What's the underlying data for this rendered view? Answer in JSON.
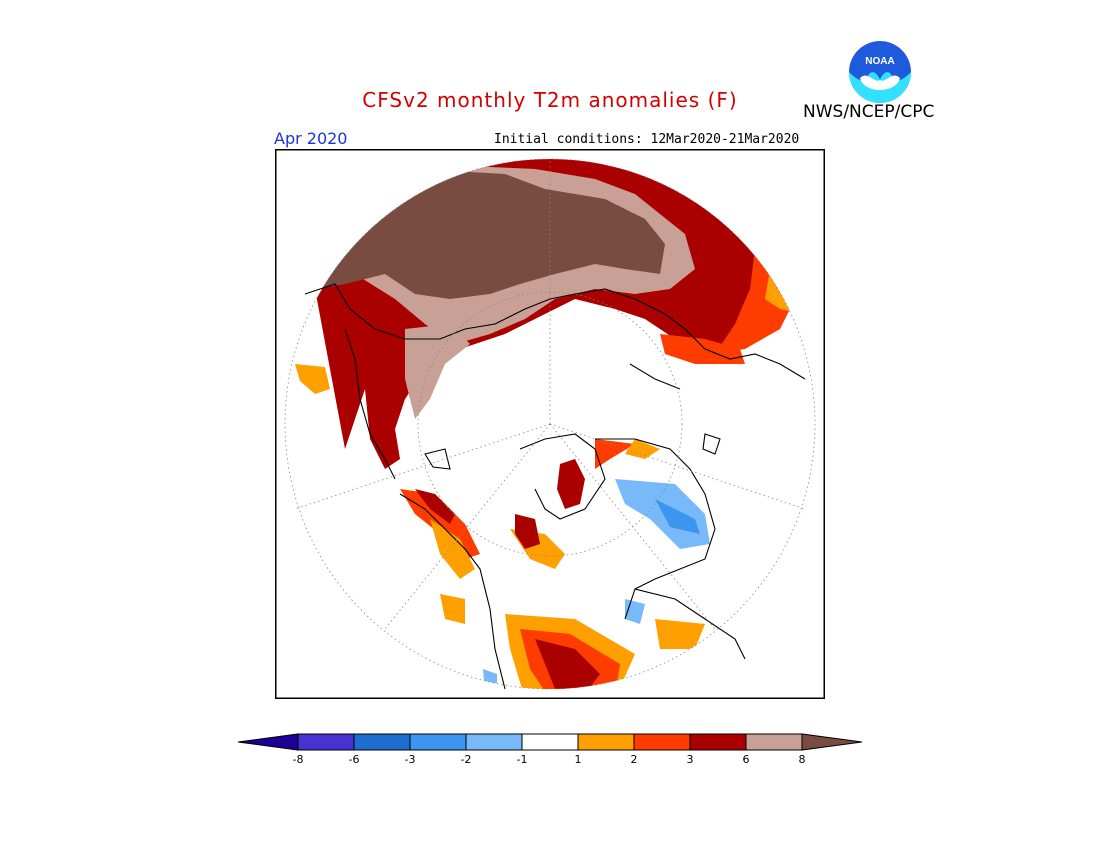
{
  "title": "CFSv2 monthly T2m anomalies (F)",
  "valid_month": "Apr 2020",
  "initial_conditions": "Initial conditions: 12Mar2020-21Mar2020",
  "agency": "NWS/NCEP/CPC",
  "logo_text": "NOAA",
  "legend": {
    "bins": [
      {
        "color": "#1e0096"
      },
      {
        "color": "#4633d2"
      },
      {
        "color": "#1e6ed2"
      },
      {
        "color": "#3c96f0"
      },
      {
        "color": "#78b9fa"
      },
      {
        "color": "#ffffff"
      },
      {
        "color": "#ffa000"
      },
      {
        "color": "#ff3c00"
      },
      {
        "color": "#aa0000"
      },
      {
        "color": "#c8a096"
      },
      {
        "color": "#784c40"
      }
    ],
    "ticks": [
      "-8",
      "-6",
      "-3",
      "-2",
      "-1",
      "1",
      "2",
      "3",
      "6",
      "8"
    ]
  },
  "anomaly_colors": {
    "gt8": "#784c40",
    "6to8": "#c8a096",
    "3to6": "#aa0000",
    "2to3": "#ff3c00",
    "1to2": "#ffa000",
    "m1to-2": "#78b9fa",
    "m2to-3": "#3c96f0",
    "m3to-6": "#1e6ed2"
  }
}
